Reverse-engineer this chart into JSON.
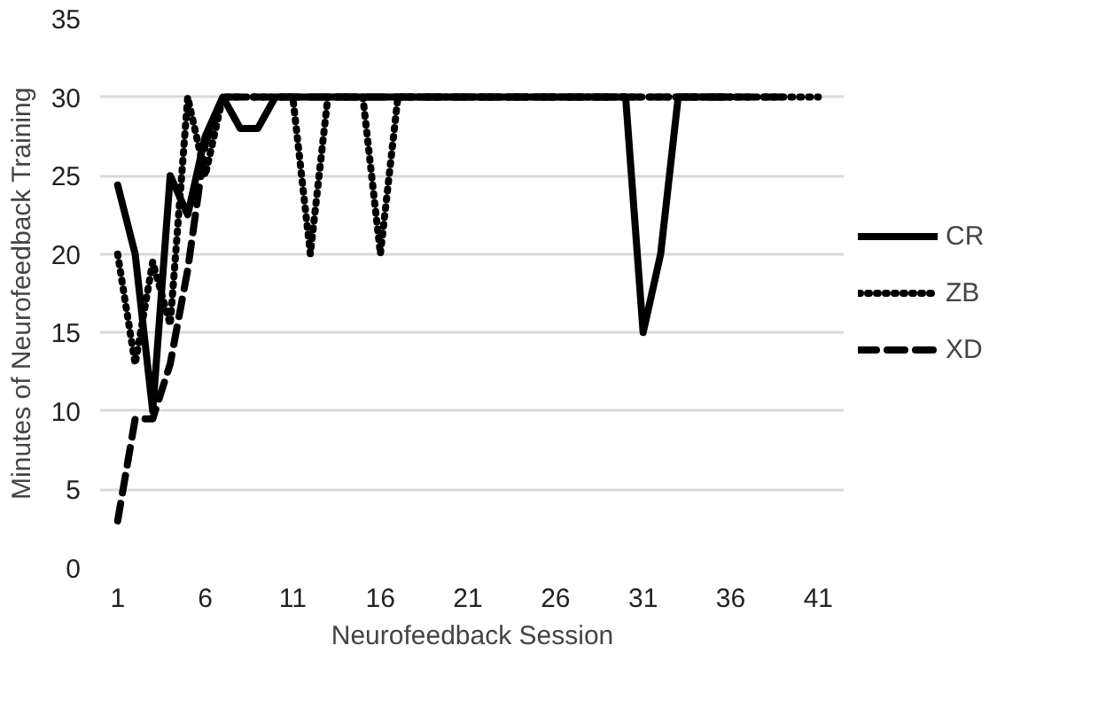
{
  "chart_data": {
    "type": "line",
    "xlabel": "Neurofeedback Session",
    "ylabel": "Minutes of Neurofeedback Training",
    "xlim": [
      0,
      42.5
    ],
    "xticks": [
      1,
      6,
      11,
      16,
      21,
      26,
      31,
      36,
      41
    ],
    "ylim": [
      0,
      35
    ],
    "yticks": [
      0,
      5,
      10,
      15,
      20,
      25,
      30,
      35
    ],
    "grid": "y",
    "legend": "right",
    "series": [
      {
        "name": "CR",
        "color": "#000000",
        "line_style": "solid",
        "x": [
          1,
          2,
          3,
          4,
          5,
          6,
          7,
          8,
          9,
          10,
          30,
          31,
          32,
          33,
          36
        ],
        "values": [
          24.4,
          20,
          10,
          25,
          22.5,
          27.5,
          30,
          28,
          28,
          30,
          30,
          15,
          20,
          30,
          30
        ]
      },
      {
        "name": "ZB",
        "color": "#000000",
        "line_style": "dotted",
        "x": [
          1,
          2,
          3,
          4,
          5,
          6,
          7,
          11,
          12,
          13,
          15,
          16,
          17,
          41
        ],
        "values": [
          20,
          13,
          19.5,
          15.5,
          30,
          25,
          30,
          30,
          20,
          30,
          30,
          20,
          30,
          30
        ]
      },
      {
        "name": "XD",
        "color": "#000000",
        "line_style": "dashed",
        "x": [
          1,
          2,
          3,
          4,
          5,
          6,
          7,
          39
        ],
        "values": [
          3,
          9.5,
          9.5,
          13,
          19,
          27,
          30,
          30
        ]
      }
    ]
  }
}
